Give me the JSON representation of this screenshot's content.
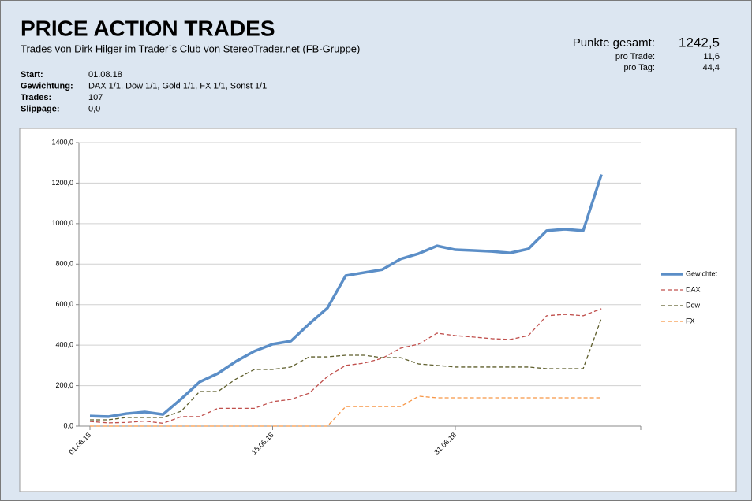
{
  "header": {
    "title": "PRICE ACTION TRADES",
    "subtitle": "Trades von Dirk Hilger im Trader´s Club von StereoTrader.net (FB-Gruppe)",
    "info": [
      {
        "label": "Start:",
        "value": "01.08.18"
      },
      {
        "label": "Gewichtung:",
        "value": "DAX 1/1, Dow 1/1, Gold 1/1, FX 1/1, Sonst 1/1"
      },
      {
        "label": "Trades:",
        "value": "107"
      },
      {
        "label": "Slippage:",
        "value": "0,0"
      }
    ],
    "summary": [
      {
        "label": "Punkte gesamt:",
        "value": "1242,5"
      },
      {
        "label": "pro Trade:",
        "value": "11,6"
      },
      {
        "label": "pro Tag:",
        "value": "44,4"
      }
    ]
  },
  "chart_data": {
    "type": "line",
    "categories": [
      "01.08.18",
      null,
      null,
      null,
      null,
      null,
      null,
      null,
      null,
      null,
      "15.08.18",
      null,
      null,
      null,
      null,
      null,
      null,
      null,
      null,
      null,
      "31.08.18",
      null,
      null,
      null,
      null,
      null,
      null,
      null,
      null
    ],
    "series": [
      {
        "name": "Gewichtet",
        "color": "#5b8ec7",
        "dash": false,
        "values": [
          50,
          47,
          62,
          70,
          58,
          135,
          218,
          260,
          320,
          370,
          405,
          420,
          505,
          583,
          743,
          758,
          773,
          825,
          852,
          890,
          871,
          867,
          863,
          855,
          875,
          965,
          972,
          965,
          1242.5
        ]
      },
      {
        "name": "DAX",
        "color": "#c0504d",
        "dash": true,
        "values": [
          23,
          16,
          18,
          25,
          14,
          47,
          47,
          88,
          88,
          88,
          121,
          132,
          163,
          245,
          300,
          311,
          335,
          385,
          405,
          459,
          447,
          440,
          432,
          428,
          447,
          545,
          552,
          545,
          580
        ]
      },
      {
        "name": "Dow",
        "color": "#5e5e2c",
        "dash": true,
        "values": [
          31,
          31,
          43,
          43,
          43,
          74,
          171,
          171,
          233,
          280,
          280,
          292,
          342,
          342,
          350,
          350,
          338,
          338,
          307,
          300,
          292,
          292,
          292,
          292,
          292,
          284,
          284,
          284,
          533
        ]
      },
      {
        "name": "FX",
        "color": "#f79646",
        "dash": true,
        "values": [
          0,
          0,
          0,
          0,
          0,
          0,
          0,
          0,
          0,
          0,
          0,
          0,
          0,
          0,
          97,
          97,
          97,
          97,
          148,
          140,
          140,
          140,
          140,
          140,
          140,
          140,
          140,
          140,
          140
        ]
      }
    ],
    "ylim": [
      0,
      1400
    ],
    "yticks": [
      {
        "value": 0,
        "label": "0,0"
      },
      {
        "value": 200,
        "label": "200,0"
      },
      {
        "value": 400,
        "label": "400,0"
      },
      {
        "value": 600,
        "label": "600,0"
      },
      {
        "value": 800,
        "label": "800,0"
      },
      {
        "value": 1000,
        "label": "1000,0"
      },
      {
        "value": 1200,
        "label": "1200,0"
      },
      {
        "value": 1400,
        "label": "1400,0"
      }
    ],
    "grid": true,
    "legend": "right"
  }
}
